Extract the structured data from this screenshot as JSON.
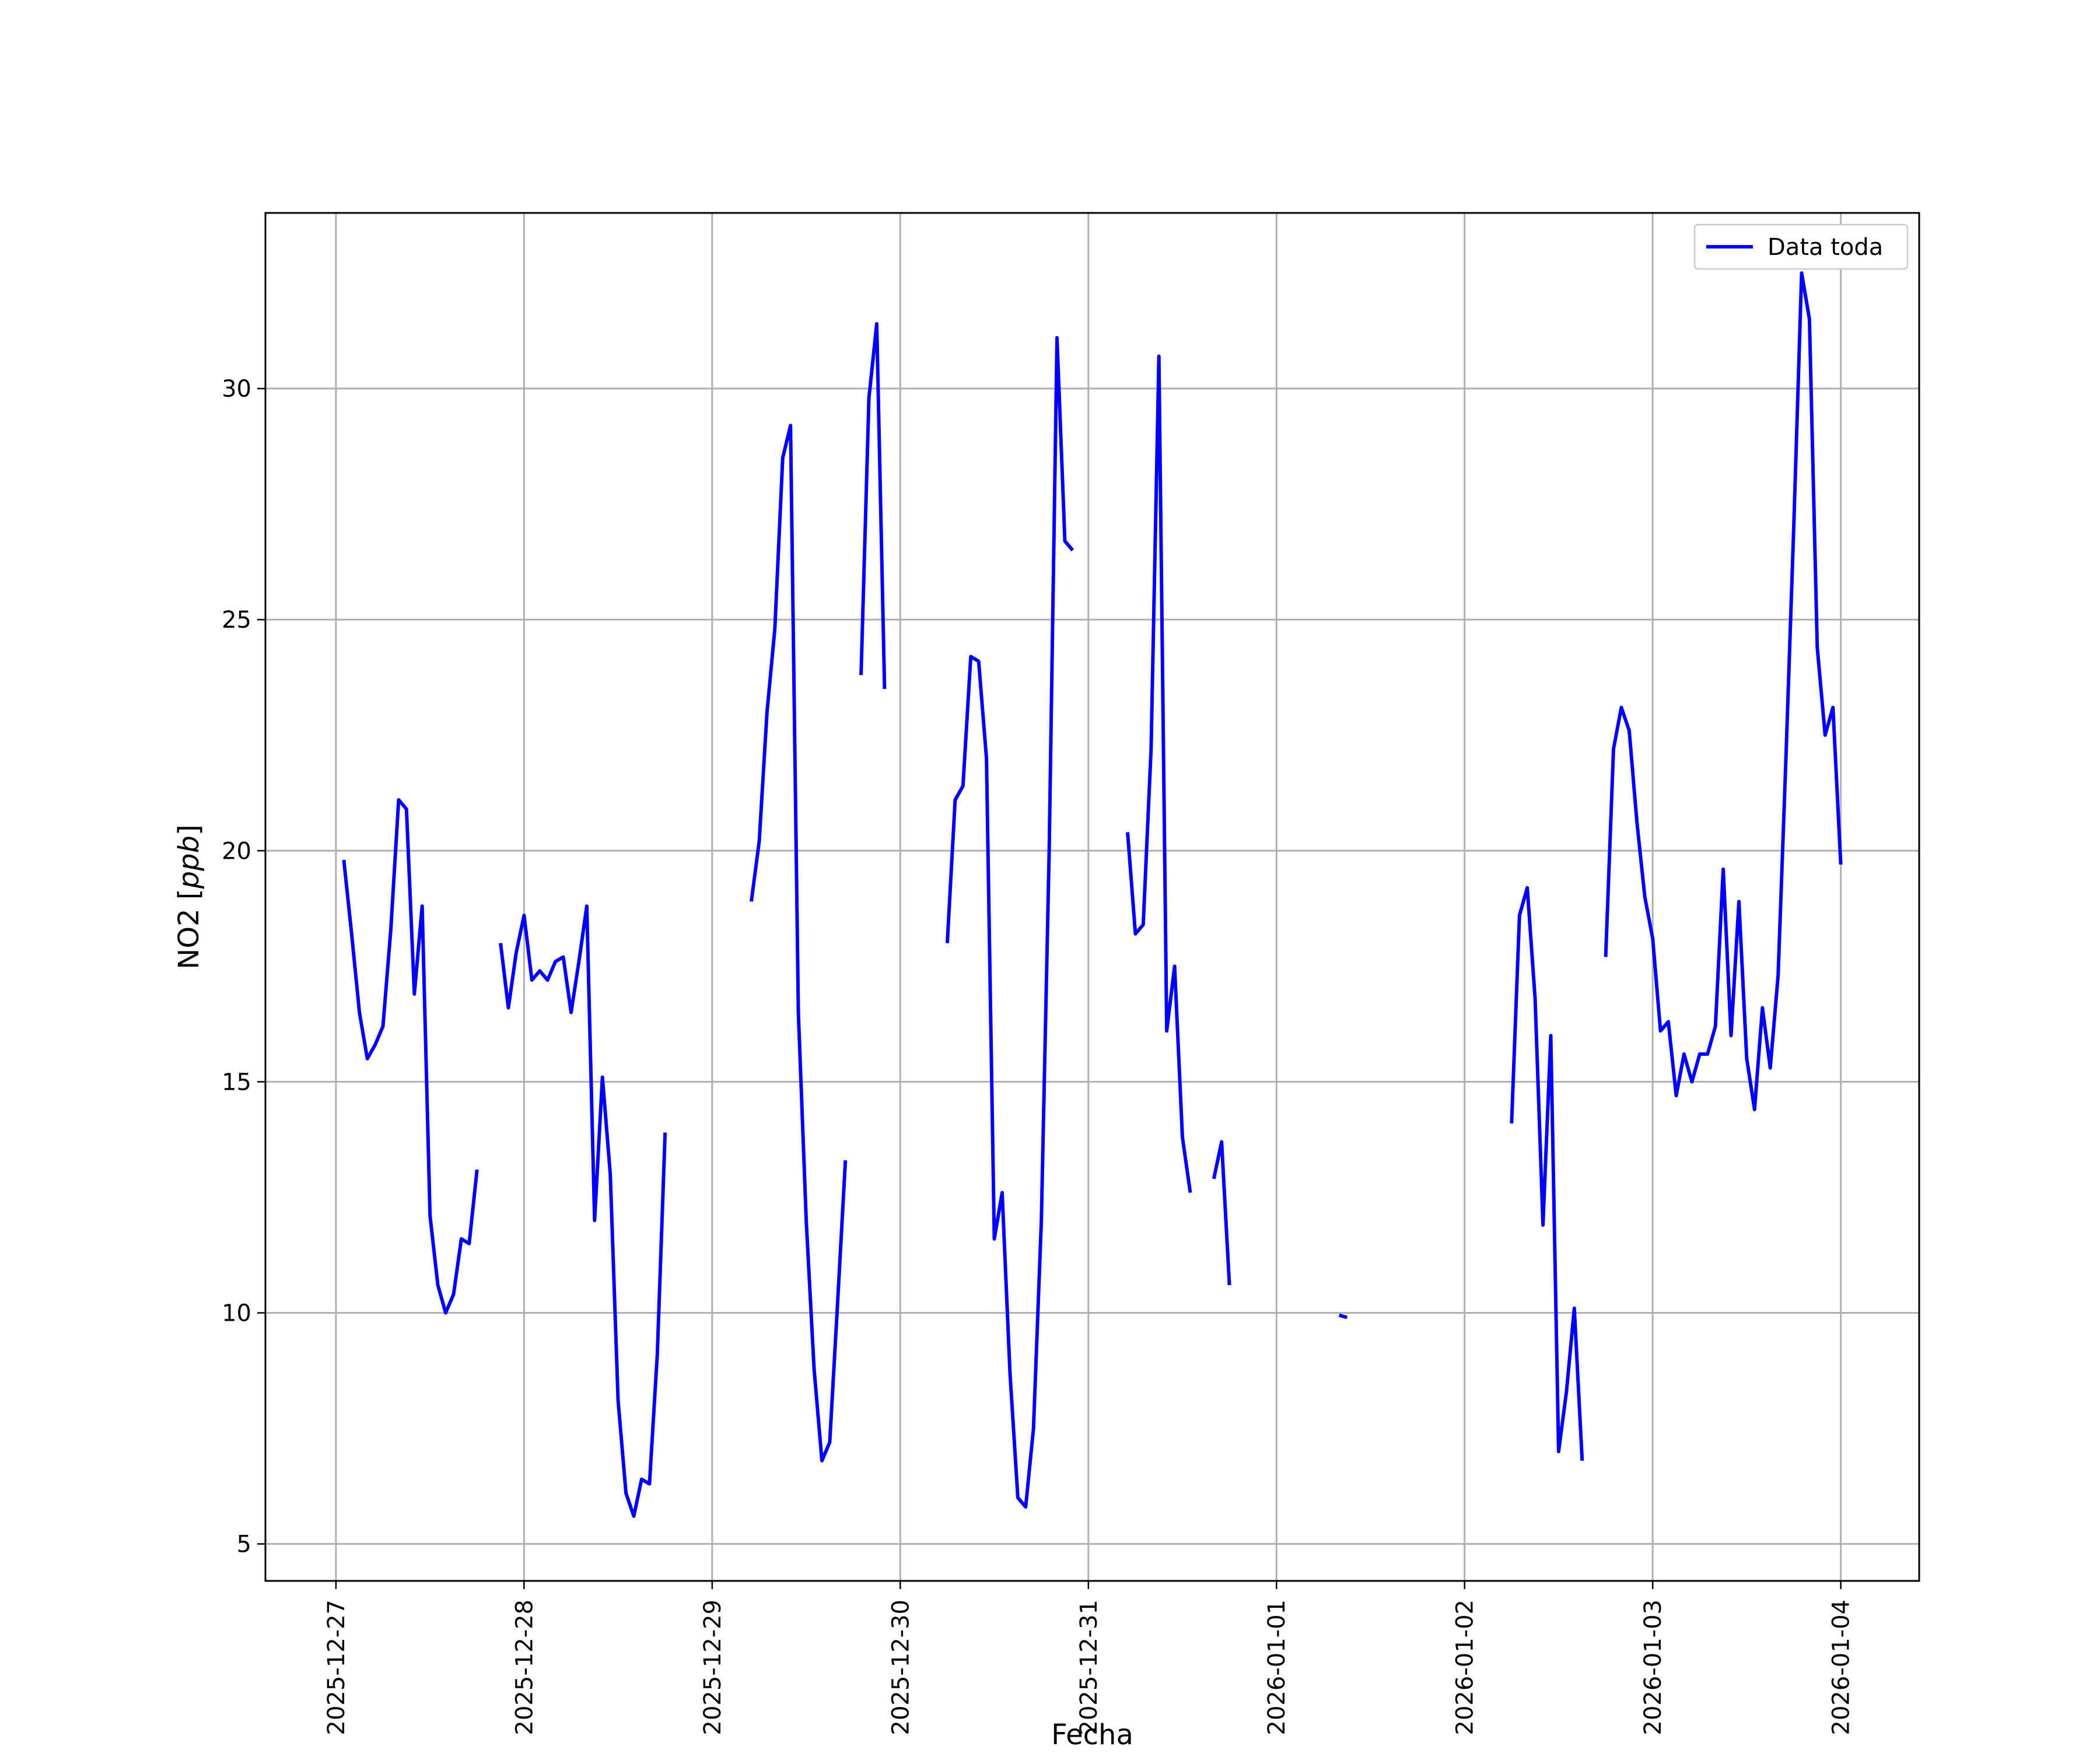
{
  "chart_data": {
    "type": "line",
    "xlabel": "Fecha",
    "ylabel_prefix": "NO2 [",
    "ylabel_unit": "ppb",
    "ylabel_suffix": "]",
    "xlim": [
      "2025-12-26 15:00",
      "2026-01-04 10:00"
    ],
    "ylim": [
      4.2,
      33.8
    ],
    "x_ticks": [
      "2025-12-27",
      "2025-12-28",
      "2025-12-29",
      "2025-12-30",
      "2025-12-31",
      "2026-01-01",
      "2026-01-02",
      "2026-01-03",
      "2026-01-04"
    ],
    "y_ticks": [
      5,
      10,
      15,
      20,
      25,
      30
    ],
    "grid": true,
    "legend_position": "top-right",
    "colors": {
      "series": "#0000ff",
      "grid": "#b0b0b0",
      "axes": "#000000"
    },
    "series": [
      {
        "name": "Data toda",
        "segments": [
          [
            [
              "2025-12-27 01:00",
              19.8
            ],
            [
              "2025-12-27 02:00",
              18.2
            ],
            [
              "2025-12-27 03:00",
              16.5
            ],
            [
              "2025-12-27 04:00",
              15.5
            ],
            [
              "2025-12-27 05:00",
              15.8
            ],
            [
              "2025-12-27 06:00",
              16.2
            ],
            [
              "2025-12-27 07:00",
              18.3
            ],
            [
              "2025-12-27 08:00",
              21.1
            ],
            [
              "2025-12-27 09:00",
              20.9
            ],
            [
              "2025-12-27 10:00",
              16.9
            ],
            [
              "2025-12-27 11:00",
              18.8
            ],
            [
              "2025-12-27 12:00",
              12.1
            ],
            [
              "2025-12-27 13:00",
              10.6
            ],
            [
              "2025-12-27 14:00",
              10.0
            ],
            [
              "2025-12-27 15:00",
              10.4
            ],
            [
              "2025-12-27 16:00",
              11.6
            ],
            [
              "2025-12-27 17:00",
              11.5
            ],
            [
              "2025-12-27 18:00",
              13.1
            ]
          ],
          [
            [
              "2025-12-27 21:00",
              18.0
            ],
            [
              "2025-12-27 22:00",
              16.6
            ],
            [
              "2025-12-27 23:00",
              17.8
            ],
            [
              "2025-12-28 00:00",
              18.6
            ],
            [
              "2025-12-28 01:00",
              17.2
            ],
            [
              "2025-12-28 02:00",
              17.4
            ],
            [
              "2025-12-28 03:00",
              17.2
            ],
            [
              "2025-12-28 04:00",
              17.6
            ],
            [
              "2025-12-28 05:00",
              17.7
            ],
            [
              "2025-12-28 06:00",
              16.5
            ],
            [
              "2025-12-28 07:00",
              17.6
            ],
            [
              "2025-12-28 08:00",
              18.8
            ],
            [
              "2025-12-28 09:00",
              12.0
            ],
            [
              "2025-12-28 10:00",
              15.1
            ],
            [
              "2025-12-28 11:00",
              13.0
            ],
            [
              "2025-12-28 12:00",
              8.1
            ],
            [
              "2025-12-28 13:00",
              6.1
            ],
            [
              "2025-12-28 14:00",
              5.6
            ],
            [
              "2025-12-28 15:00",
              6.4
            ],
            [
              "2025-12-28 16:00",
              6.3
            ],
            [
              "2025-12-28 17:00",
              9.1
            ],
            [
              "2025-12-28 18:00",
              13.9
            ]
          ],
          [
            [
              "2025-12-29 05:00",
              18.9
            ],
            [
              "2025-12-29 06:00",
              20.2
            ],
            [
              "2025-12-29 07:00",
              23.0
            ],
            [
              "2025-12-29 08:00",
              24.8
            ],
            [
              "2025-12-29 09:00",
              28.5
            ],
            [
              "2025-12-29 10:00",
              29.2
            ],
            [
              "2025-12-29 11:00",
              16.5
            ],
            [
              "2025-12-29 12:00",
              12.0
            ],
            [
              "2025-12-29 13:00",
              8.8
            ],
            [
              "2025-12-29 14:00",
              6.8
            ],
            [
              "2025-12-29 15:00",
              7.2
            ],
            [
              "2025-12-29 16:00",
              10.2
            ],
            [
              "2025-12-29 17:00",
              13.3
            ]
          ],
          [
            [
              "2025-12-29 19:00",
              23.8
            ],
            [
              "2025-12-29 20:00",
              29.8
            ],
            [
              "2025-12-29 21:00",
              31.4
            ],
            [
              "2025-12-29 22:00",
              23.5
            ]
          ],
          [
            [
              "2025-12-30 06:00",
              18.0
            ],
            [
              "2025-12-30 07:00",
              21.1
            ],
            [
              "2025-12-30 08:00",
              21.4
            ],
            [
              "2025-12-30 09:00",
              24.2
            ],
            [
              "2025-12-30 10:00",
              24.1
            ],
            [
              "2025-12-30 11:00",
              22.0
            ],
            [
              "2025-12-30 12:00",
              11.6
            ],
            [
              "2025-12-30 13:00",
              12.6
            ],
            [
              "2025-12-30 14:00",
              8.7
            ],
            [
              "2025-12-30 15:00",
              6.0
            ],
            [
              "2025-12-30 16:00",
              5.8
            ],
            [
              "2025-12-30 17:00",
              7.5
            ],
            [
              "2025-12-30 18:00",
              12.0
            ],
            [
              "2025-12-30 19:00",
              20.0
            ],
            [
              "2025-12-30 20:00",
              31.1
            ],
            [
              "2025-12-30 21:00",
              26.7
            ],
            [
              "2025-12-30 22:00",
              26.5
            ]
          ],
          [
            [
              "2025-12-31 05:00",
              20.4
            ],
            [
              "2025-12-31 06:00",
              18.2
            ],
            [
              "2025-12-31 07:00",
              18.4
            ],
            [
              "2025-12-31 08:00",
              22.2
            ],
            [
              "2025-12-31 09:00",
              30.7
            ],
            [
              "2025-12-31 10:00",
              16.1
            ],
            [
              "2025-12-31 11:00",
              17.5
            ],
            [
              "2025-12-31 12:00",
              13.8
            ],
            [
              "2025-12-31 13:00",
              12.6
            ]
          ],
          [
            [
              "2025-12-31 16:00",
              12.9
            ],
            [
              "2025-12-31 17:00",
              13.7
            ],
            [
              "2025-12-31 18:00",
              10.6
            ]
          ],
          [
            [
              "2026-01-01 08:00",
              9.95
            ],
            [
              "2026-01-01 09:00",
              9.9
            ]
          ],
          [
            [
              "2026-01-02 06:00",
              14.1
            ],
            [
              "2026-01-02 07:00",
              18.6
            ],
            [
              "2026-01-02 08:00",
              19.2
            ],
            [
              "2026-01-02 09:00",
              16.8
            ],
            [
              "2026-01-02 10:00",
              11.9
            ],
            [
              "2026-01-02 11:00",
              16.0
            ],
            [
              "2026-01-02 12:00",
              7.0
            ],
            [
              "2026-01-02 13:00",
              8.3
            ],
            [
              "2026-01-02 14:00",
              10.1
            ],
            [
              "2026-01-02 15:00",
              6.8
            ]
          ],
          [
            [
              "2026-01-02 18:00",
              17.7
            ],
            [
              "2026-01-02 19:00",
              22.2
            ],
            [
              "2026-01-02 20:00",
              23.1
            ],
            [
              "2026-01-02 21:00",
              22.6
            ],
            [
              "2026-01-02 22:00",
              20.6
            ],
            [
              "2026-01-02 23:00",
              19.0
            ],
            [
              "2026-01-03 00:00",
              18.1
            ],
            [
              "2026-01-03 01:00",
              16.1
            ],
            [
              "2026-01-03 02:00",
              16.3
            ],
            [
              "2026-01-03 03:00",
              14.7
            ],
            [
              "2026-01-03 04:00",
              15.6
            ],
            [
              "2026-01-03 05:00",
              15.0
            ],
            [
              "2026-01-03 06:00",
              15.6
            ],
            [
              "2026-01-03 07:00",
              15.6
            ],
            [
              "2026-01-03 08:00",
              16.2
            ],
            [
              "2026-01-03 09:00",
              19.6
            ],
            [
              "2026-01-03 10:00",
              16.0
            ],
            [
              "2026-01-03 11:00",
              18.9
            ],
            [
              "2026-01-03 12:00",
              15.5
            ],
            [
              "2026-01-03 13:00",
              14.4
            ],
            [
              "2026-01-03 14:00",
              16.6
            ],
            [
              "2026-01-03 15:00",
              15.3
            ],
            [
              "2026-01-03 16:00",
              17.3
            ],
            [
              "2026-01-03 17:00",
              22.0
            ],
            [
              "2026-01-03 18:00",
              27.0
            ],
            [
              "2026-01-03 19:00",
              32.5
            ],
            [
              "2026-01-03 20:00",
              31.5
            ],
            [
              "2026-01-03 21:00",
              24.4
            ],
            [
              "2026-01-03 22:00",
              22.5
            ],
            [
              "2026-01-03 23:00",
              23.1
            ],
            [
              "2026-01-04 00:00",
              19.7
            ]
          ]
        ]
      }
    ]
  }
}
